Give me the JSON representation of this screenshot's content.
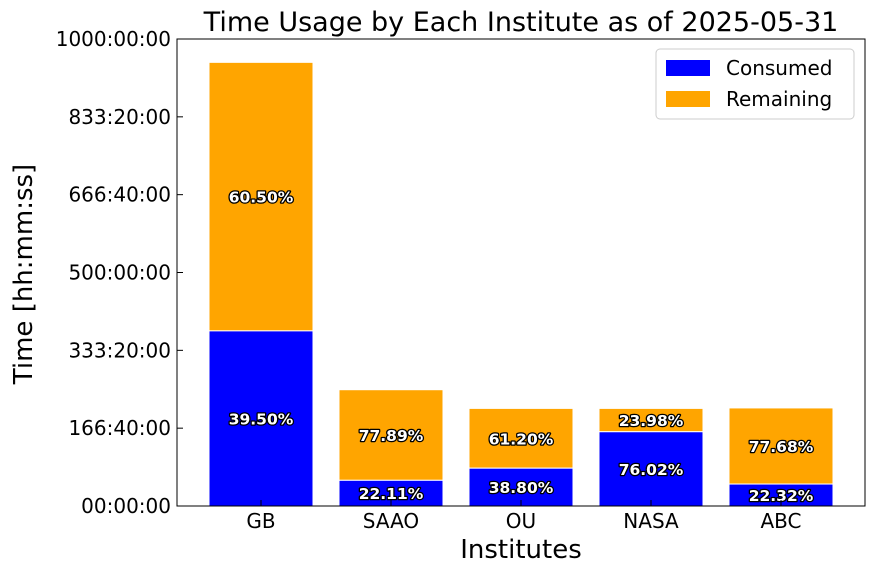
{
  "chart_data": {
    "type": "bar",
    "stacked": true,
    "title": "Time Usage by Each Institute as of 2025-05-31",
    "xlabel": "Institutes",
    "ylabel": "Time [hh:mm:ss]",
    "ylim_hours": [
      0,
      1000
    ],
    "yticks_hours": [
      0,
      166.6667,
      333.3333,
      500,
      666.6667,
      833.3333,
      1000
    ],
    "ytick_labels": [
      "00:00:00",
      "166:40:00",
      "333:20:00",
      "500:00:00",
      "666:40:00",
      "833:20:00",
      "1000:00:00"
    ],
    "categories": [
      "GB",
      "SAAO",
      "OU",
      "NASA",
      "ABC"
    ],
    "series": [
      {
        "name": "Consumed",
        "color": "#0000ff",
        "values_hours": [
          375,
          55,
          81,
          159,
          47
        ],
        "percent_labels": [
          "39.50%",
          "22.11%",
          "38.80%",
          "76.02%",
          "22.32%"
        ]
      },
      {
        "name": "Remaining",
        "color": "#ffa500",
        "values_hours": [
          575,
          194,
          128,
          50,
          163
        ],
        "percent_labels": [
          "60.50%",
          "77.89%",
          "61.20%",
          "23.98%",
          "77.68%"
        ]
      }
    ],
    "legend_position": "top-right",
    "grid": false
  }
}
